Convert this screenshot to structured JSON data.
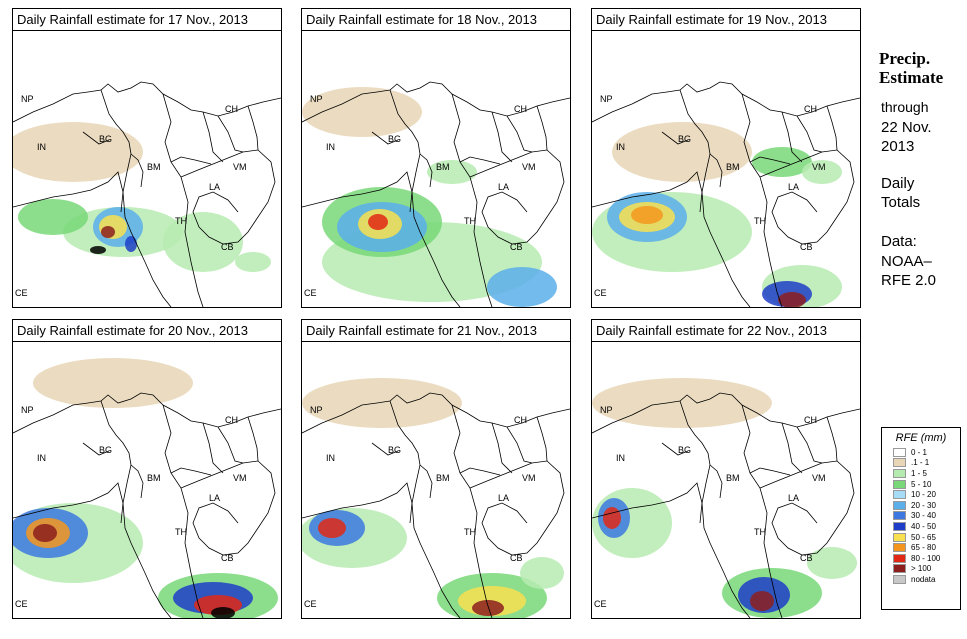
{
  "panels": [
    {
      "title": "Daily Rainfall estimate for  17 Nov., 2013"
    },
    {
      "title": "Daily Rainfall estimate for  18 Nov., 2013"
    },
    {
      "title": "Daily Rainfall estimate for  19 Nov., 2013"
    },
    {
      "title": "Daily Rainfall estimate for  20 Nov., 2013"
    },
    {
      "title": "Daily Rainfall estimate for  21 Nov., 2013"
    },
    {
      "title": "Daily Rainfall estimate for  22 Nov., 2013"
    }
  ],
  "country_labels": [
    "NP",
    "CH",
    "IN",
    "BG",
    "BM",
    "VM",
    "LA",
    "TH",
    "CB",
    "CE"
  ],
  "sidebar": {
    "title_line1": "Precip.",
    "title_line2": "Estimate",
    "line_through": "through",
    "line_date1": "22 Nov.",
    "line_date2": "2013",
    "daily1": "Daily",
    "daily2": "Totals",
    "data1": "Data:",
    "data2": "NOAA–",
    "data3": "RFE 2.0"
  },
  "legend": {
    "title": "RFE (mm)",
    "items": [
      {
        "label": "0 - 1",
        "color": "#ffffff"
      },
      {
        "label": ".1 - 1",
        "color": "#e8d6b6"
      },
      {
        "label": "1 - 5",
        "color": "#b6ebb0"
      },
      {
        "label": "5 - 10",
        "color": "#78d878"
      },
      {
        "label": "10 - 20",
        "color": "#a6dcf5"
      },
      {
        "label": "20 - 30",
        "color": "#5aaeea"
      },
      {
        "label": "30 - 40",
        "color": "#3c78e0"
      },
      {
        "label": "40 - 50",
        "color": "#1e3ec8"
      },
      {
        "label": "50 - 65",
        "color": "#f8e050"
      },
      {
        "label": "65 - 80",
        "color": "#f4961e"
      },
      {
        "label": "80 - 100",
        "color": "#e02814"
      },
      {
        "label": "> 100",
        "color": "#8c1e1e"
      },
      {
        "label": "nodata",
        "color": "#c8c8c8"
      }
    ]
  }
}
